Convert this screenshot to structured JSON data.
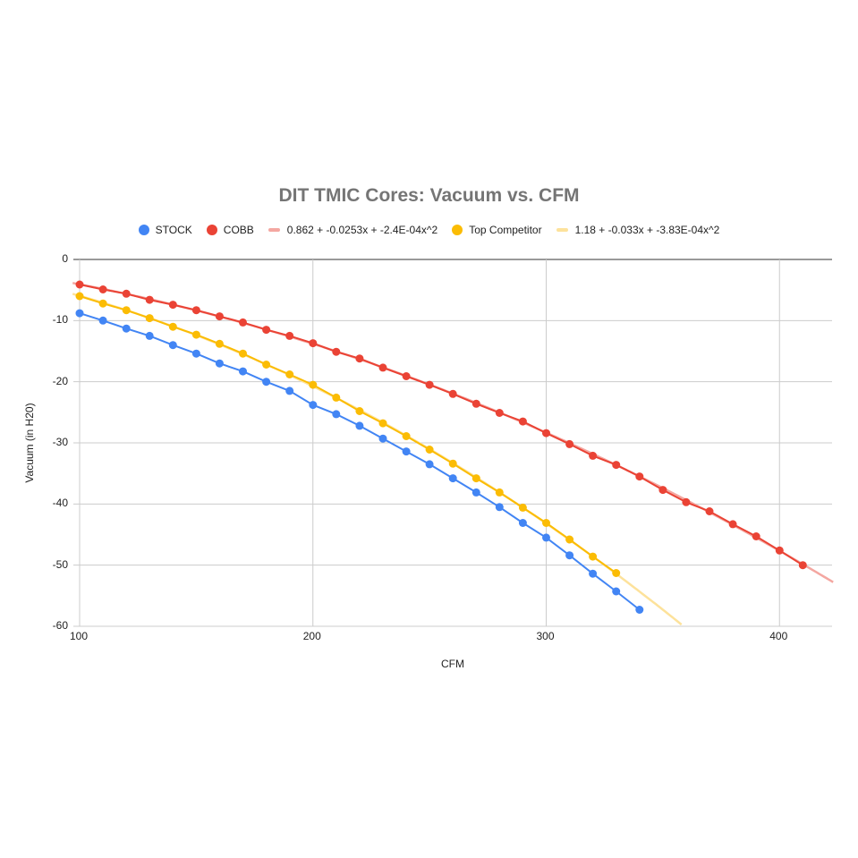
{
  "chart": {
    "title": "DIT TMIC Cores: Vacuum vs. CFM",
    "xlabel": "CFM",
    "ylabel": "Vacuum (in H20)"
  },
  "legend": [
    {
      "label": "STOCK",
      "kind": "dot",
      "color": "#4285f4"
    },
    {
      "label": "COBB",
      "kind": "dot",
      "color": "#ea4335"
    },
    {
      "label": "0.862 + -0.0253x + -2.4E-04x^2",
      "kind": "line",
      "color": "#f4a7a1"
    },
    {
      "label": "Top Competitor",
      "kind": "dot",
      "color": "#fbbc04"
    },
    {
      "label": "1.18 + -0.033x + -3.83E-04x^2",
      "kind": "line",
      "color": "#fde29b"
    }
  ],
  "chart_data": {
    "type": "scatter",
    "title": "DIT TMIC Cores: Vacuum vs. CFM",
    "xlabel": "CFM",
    "ylabel": "Vacuum (in H20)",
    "xlim": [
      97,
      423
    ],
    "ylim": [
      -60,
      0
    ],
    "x_ticks": [
      100,
      200,
      300,
      400
    ],
    "y_ticks": [
      0,
      -10,
      -20,
      -30,
      -40,
      -50,
      -60
    ],
    "grid": true,
    "legend_position": "top",
    "series": [
      {
        "name": "STOCK",
        "color": "#4285f4",
        "x": [
          100,
          110,
          120,
          130,
          140,
          150,
          160,
          170,
          180,
          190,
          200,
          210,
          220,
          230,
          240,
          250,
          260,
          270,
          280,
          290,
          300,
          310,
          320,
          330,
          340
        ],
        "y": [
          -8.8,
          -10.0,
          -11.3,
          -12.5,
          -14.0,
          -15.4,
          -17.0,
          -18.3,
          -20.0,
          -21.5,
          -23.8,
          -25.3,
          -27.2,
          -29.3,
          -31.4,
          -33.5,
          -35.8,
          -38.1,
          -40.5,
          -43.1,
          -45.5,
          -48.4,
          -51.4,
          -54.3,
          -57.3
        ]
      },
      {
        "name": "COBB",
        "color": "#ea4335",
        "x": [
          100,
          110,
          120,
          130,
          140,
          150,
          160,
          170,
          180,
          190,
          200,
          210,
          220,
          230,
          240,
          250,
          260,
          270,
          280,
          290,
          300,
          310,
          320,
          330,
          340,
          350,
          360,
          370,
          380,
          390,
          400,
          410
        ],
        "y": [
          -4.1,
          -4.9,
          -5.6,
          -6.6,
          -7.4,
          -8.3,
          -9.3,
          -10.3,
          -11.5,
          -12.5,
          -13.7,
          -15.1,
          -16.2,
          -17.7,
          -19.1,
          -20.5,
          -22.0,
          -23.6,
          -25.1,
          -26.5,
          -28.4,
          -30.2,
          -32.1,
          -33.6,
          -35.5,
          -37.7,
          -39.7,
          -41.2,
          -43.3,
          -45.3,
          -47.6,
          -50.0
        ]
      },
      {
        "name": "Top Competitor",
        "color": "#fbbc04",
        "x": [
          100,
          110,
          120,
          130,
          140,
          150,
          160,
          170,
          180,
          190,
          200,
          210,
          220,
          230,
          240,
          250,
          260,
          270,
          280,
          290,
          300,
          310,
          320,
          330
        ],
        "y": [
          -6.0,
          -7.2,
          -8.3,
          -9.6,
          -11.0,
          -12.3,
          -13.8,
          -15.4,
          -17.2,
          -18.8,
          -20.5,
          -22.6,
          -24.8,
          -26.8,
          -28.9,
          -31.1,
          -33.4,
          -35.8,
          -38.1,
          -40.6,
          -43.1,
          -45.8,
          -48.6,
          -51.3
        ]
      }
    ],
    "trendlines": [
      {
        "name": "0.862 + -0.0253x + -2.4E-04x^2",
        "for": "COBB",
        "type": "polynomial",
        "coefficients": [
          0.862,
          -0.0253,
          -0.00024
        ],
        "x_range": [
          97,
          423
        ],
        "color": "#f4a7a1"
      },
      {
        "name": "1.18 + -0.033x + -3.83E-04x^2",
        "for": "Top Competitor",
        "type": "polynomial",
        "coefficients": [
          1.18,
          -0.033,
          -0.000383
        ],
        "x_range": [
          97,
          359
        ],
        "color": "#fde29b"
      }
    ]
  }
}
